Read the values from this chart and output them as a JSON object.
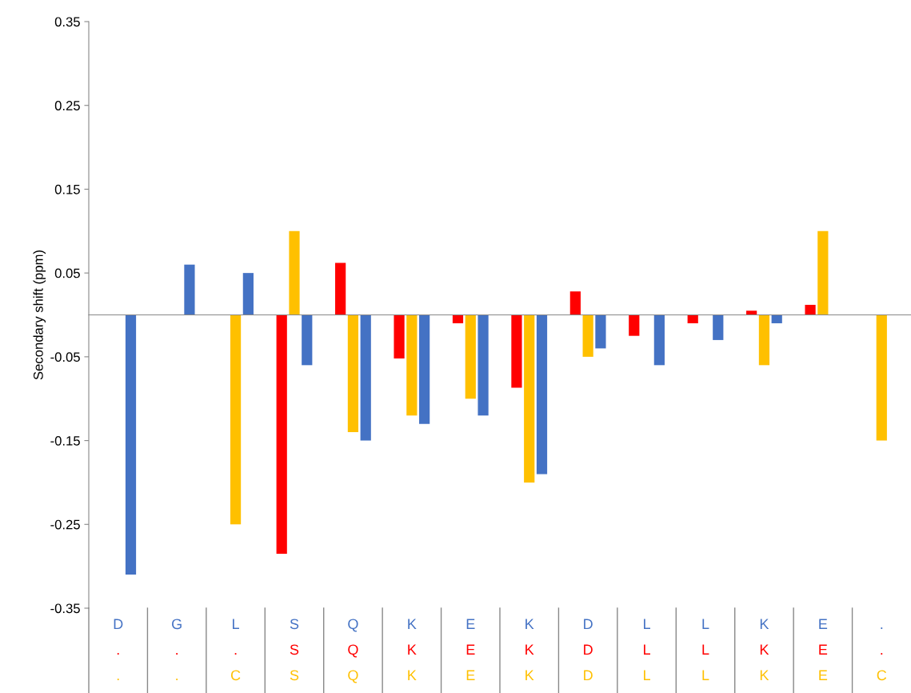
{
  "chart_data": {
    "type": "bar",
    "ylabel": "Secondary shift (ppm)",
    "categories": [
      "D\n.\n.",
      "G\n.\n.",
      "L\n.\nC",
      "S\nS\nS",
      "Q\nQ\nQ",
      "K\nK\nK",
      "E\nE\nE",
      "K\nK\nK",
      "D\nD\nD",
      "L\nL\nL",
      "L\nL\nL",
      "K\nK\nK",
      "E\nE\nE",
      ".\n.\nC"
    ],
    "series": [
      {
        "color": "#ff0000",
        "values": [
          null,
          null,
          null,
          -0.285,
          0.062,
          -0.052,
          -0.01,
          -0.087,
          0.028,
          -0.025,
          -0.01,
          0.005,
          0.012,
          null
        ]
      },
      {
        "color": "#ffc000",
        "values": [
          null,
          null,
          -0.25,
          0.1,
          -0.14,
          -0.12,
          -0.1,
          -0.2,
          -0.05,
          null,
          null,
          -0.06,
          0.1,
          -0.15
        ]
      },
      {
        "color": "#4472c4",
        "values": [
          -0.31,
          0.06,
          0.05,
          -0.06,
          -0.15,
          -0.13,
          -0.12,
          -0.19,
          -0.04,
          -0.06,
          -0.03,
          -0.01,
          null,
          null
        ]
      }
    ],
    "ylim": [
      -0.35,
      0.35
    ],
    "yticks": [
      -0.35,
      -0.25,
      -0.15,
      -0.05,
      0.05,
      0.15,
      0.25,
      0.35
    ],
    "grid": false,
    "legend": false
  }
}
